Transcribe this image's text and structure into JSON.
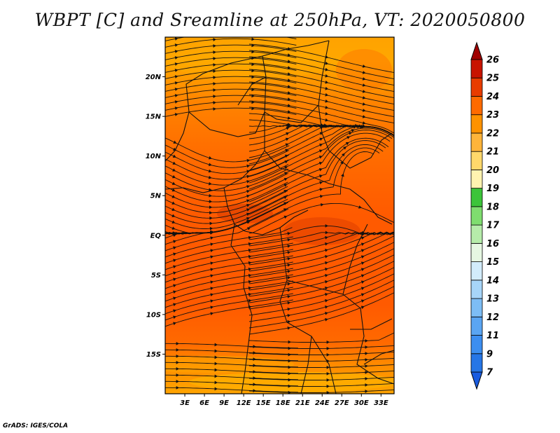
{
  "title": "WBPT [C] and Sreamline at 250hPa, VT: 2020050800",
  "credit": "GrADS: IGES/COLA",
  "map": {
    "lon_range": [
      0,
      35
    ],
    "lat_range": [
      -20,
      25
    ],
    "lon_ticks": [
      "3E",
      "6E",
      "9E",
      "12E",
      "15E",
      "18E",
      "21E",
      "24E",
      "27E",
      "30E",
      "33E"
    ],
    "lat_ticks": [
      "20N",
      "15N",
      "10N",
      "5N",
      "EQ",
      "5S",
      "10S",
      "15S"
    ],
    "field": "WBPT",
    "level": "250hPa",
    "overlay": "streamlines"
  },
  "colorbar": {
    "labels": [
      "7",
      "9",
      "11",
      "12",
      "13",
      "14",
      "15",
      "16",
      "17",
      "18",
      "19",
      "20",
      "21",
      "22",
      "23",
      "24",
      "25",
      "26"
    ],
    "colors": [
      "#1a5ce0",
      "#2676e6",
      "#3c8ef0",
      "#5aa5f2",
      "#7dbdf5",
      "#a7d5f8",
      "#d2ecfb",
      "#e6f7e2",
      "#b6ecaa",
      "#7fdd6f",
      "#3cc43a",
      "#fff3b0",
      "#ffd86b",
      "#ffb43a",
      "#ff9200",
      "#ff6a00",
      "#e83c00",
      "#c81400",
      "#a00000"
    ]
  }
}
